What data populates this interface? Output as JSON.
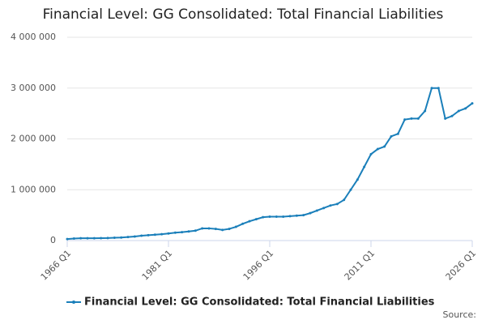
{
  "chart_data": {
    "type": "line",
    "title": "Financial Level: GG Consolidated: Total Financial Liabilities",
    "source": "Source:",
    "categories": [
      "1966 Q1",
      null,
      null,
      null,
      null,
      null,
      null,
      null,
      null,
      null,
      null,
      null,
      null,
      null,
      null,
      "1981 Q1",
      null,
      null,
      null,
      null,
      null,
      null,
      null,
      null,
      null,
      null,
      null,
      null,
      null,
      null,
      "1996 Q1",
      null,
      null,
      null,
      null,
      null,
      null,
      null,
      null,
      null,
      null,
      null,
      null,
      null,
      null,
      "2011 Q1",
      null,
      null,
      null,
      null,
      null,
      null,
      null,
      null,
      null,
      null,
      null,
      null,
      null,
      null,
      "2026 Q1"
    ],
    "series": [
      {
        "name": "Financial Level: GG Consolidated: Total Financial Liabilities",
        "color": "#1a7fba",
        "values": [
          30000,
          40000,
          45000,
          45000,
          45000,
          48000,
          50000,
          55000,
          60000,
          70000,
          80000,
          95000,
          105000,
          115000,
          125000,
          140000,
          155000,
          165000,
          180000,
          195000,
          240000,
          240000,
          230000,
          210000,
          230000,
          270000,
          330000,
          380000,
          420000,
          460000,
          470000,
          470000,
          470000,
          480000,
          490000,
          500000,
          540000,
          590000,
          640000,
          690000,
          720000,
          800000,
          1000000,
          1200000,
          1450000,
          1700000,
          1800000,
          1850000,
          2050000,
          2100000,
          2380000,
          2400000,
          2400000,
          2550000,
          3000000,
          3000000,
          2400000,
          2450000,
          2550000,
          2600000,
          2700000
        ]
      }
    ],
    "ylim": [
      0,
      4000000
    ],
    "yticks": [
      0,
      {
        "value": 1000000,
        "label": "1 000 000"
      },
      {
        "value": 2000000,
        "label": "2 000 000"
      },
      {
        "value": 3000000,
        "label": "3 000 000"
      },
      {
        "value": 4000000,
        "label": "4 000 000"
      }
    ],
    "grid": true
  }
}
